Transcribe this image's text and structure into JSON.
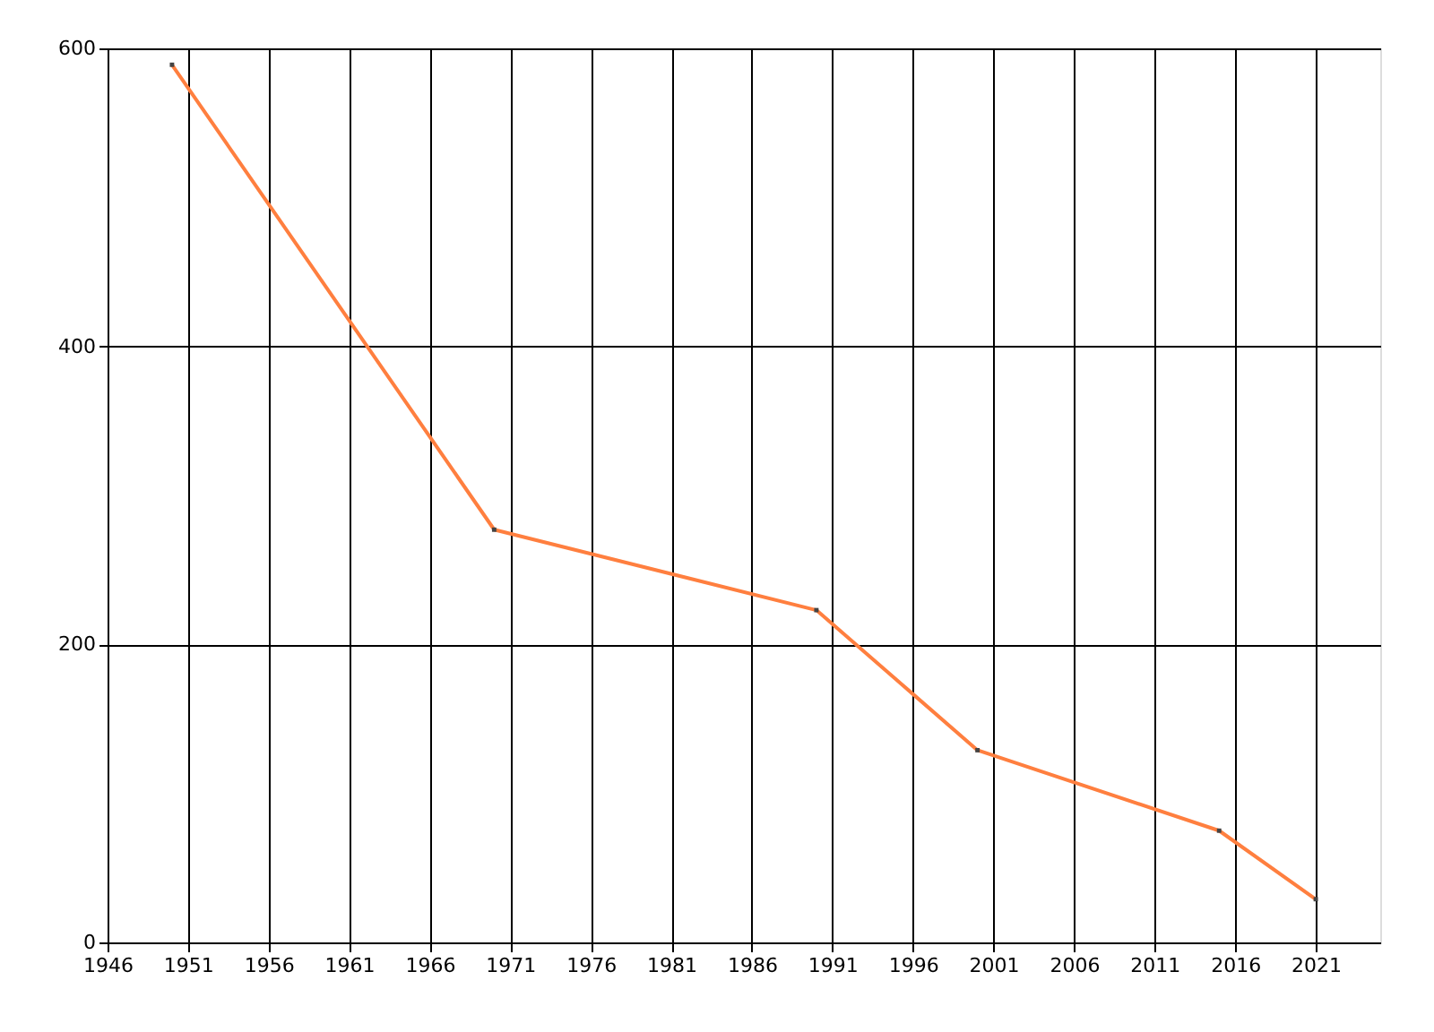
{
  "chart_data": {
    "type": "line",
    "x": [
      1950,
      1970,
      1990,
      2000,
      2015,
      2021
    ],
    "series": [
      {
        "color": "#ff7f3f",
        "values": [
          589,
          277,
          223,
          129,
          75,
          29
        ]
      }
    ],
    "xlim": [
      1946,
      2025
    ],
    "xticks": [
      1946,
      1951,
      1956,
      1961,
      1966,
      1971,
      1976,
      1981,
      1986,
      1991,
      1996,
      2001,
      2006,
      2011,
      2016,
      2021
    ],
    "ylim": [
      0,
      600
    ],
    "yticks": [
      0,
      200,
      400,
      600
    ],
    "grid": true,
    "marker": "square",
    "line_style": "solid"
  }
}
